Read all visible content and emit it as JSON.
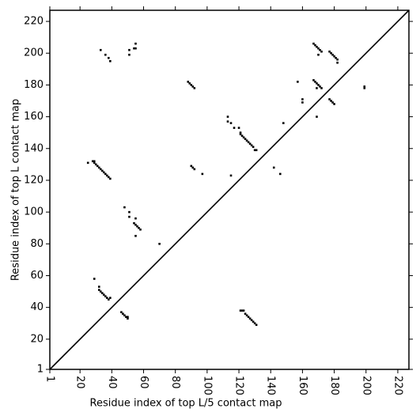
{
  "chart_data": {
    "type": "scatter",
    "xlabel": "Residue index of top L/5 contact map",
    "ylabel": "Residue index of top L contact map",
    "xlim": [
      1,
      227
    ],
    "ylim": [
      1,
      227
    ],
    "xticks": [
      1,
      20,
      40,
      60,
      80,
      100,
      120,
      140,
      160,
      180,
      200,
      220
    ],
    "yticks": [
      1,
      20,
      40,
      60,
      80,
      100,
      120,
      140,
      160,
      180,
      200,
      220
    ],
    "color": "#000000",
    "x": [
      25,
      28,
      29,
      30,
      31,
      32,
      33,
      34,
      35,
      36,
      37,
      38,
      39,
      29,
      33,
      36,
      38,
      39,
      51,
      51,
      54,
      55,
      55,
      48,
      51,
      51,
      55,
      54,
      55,
      56,
      57,
      58,
      55,
      70,
      29,
      32,
      32,
      33,
      34,
      35,
      36,
      37,
      38,
      39,
      46,
      47,
      48,
      49,
      50,
      50,
      88,
      89,
      90,
      91,
      92,
      90,
      91,
      92,
      97,
      113,
      113,
      115,
      117,
      120,
      121,
      121,
      122,
      123,
      124,
      125,
      126,
      127,
      128,
      129,
      130,
      131,
      115,
      121,
      122,
      123,
      124,
      125,
      126,
      127,
      128,
      129,
      130,
      131,
      142,
      146,
      148,
      157,
      160,
      160,
      167,
      168,
      169,
      170,
      171,
      172,
      170,
      167,
      168,
      169,
      170,
      171,
      172,
      169,
      169,
      177,
      178,
      179,
      180,
      181,
      182,
      182,
      177,
      178,
      179,
      180,
      199,
      199
    ],
    "y": [
      131,
      132,
      131,
      130,
      129,
      128,
      127,
      126,
      125,
      124,
      123,
      122,
      121,
      132,
      202,
      199,
      197,
      195,
      202,
      199,
      203,
      203,
      206,
      103,
      100,
      97,
      96,
      93,
      92,
      91,
      90,
      89,
      85,
      80,
      58,
      53,
      51,
      50,
      49,
      48,
      47,
      46,
      45,
      46,
      37,
      36,
      35,
      34,
      34,
      33,
      182,
      181,
      180,
      179,
      178,
      129,
      128,
      127,
      124,
      160,
      157,
      156,
      153,
      153,
      150,
      149,
      148,
      147,
      146,
      145,
      144,
      143,
      142,
      141,
      139,
      139,
      123,
      38,
      38,
      38,
      36,
      35,
      34,
      33,
      32,
      31,
      30,
      29,
      128,
      124,
      156,
      182,
      171,
      169,
      206,
      205,
      204,
      203,
      202,
      201,
      199,
      183,
      182,
      181,
      180,
      179,
      178,
      178,
      160,
      201,
      200,
      199,
      198,
      197,
      196,
      194,
      171,
      170,
      169,
      168,
      179,
      178
    ]
  }
}
